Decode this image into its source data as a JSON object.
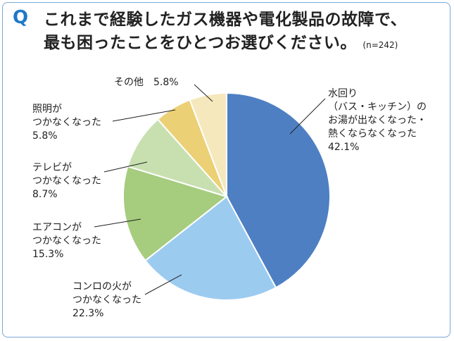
{
  "header": {
    "q_mark": "Q",
    "title_line1": "これまで経験したガス機器や電化製品の故障で、",
    "title_line2": "最も困ったことをひとつお選びください。",
    "note": "(n=242)"
  },
  "colors": {
    "accent": "#1f78c8",
    "frame": "#7aa8d6"
  },
  "chart_data": {
    "type": "pie",
    "start": "12 o'clock",
    "direction": "clockwise",
    "slices": [
      {
        "label_lines": [
          "水回り",
          "（バス・キッチン）の",
          "お湯が出なくなった・",
          "熱くならなくなった"
        ],
        "value": 42.1,
        "value_text": "42.1%",
        "color": "#4e7fc2"
      },
      {
        "label_lines": [
          "コンロの火が",
          "つかなくなった"
        ],
        "value": 22.3,
        "value_text": "22.3%",
        "color": "#9ccbf0"
      },
      {
        "label_lines": [
          "エアコンが",
          "つかなくなった"
        ],
        "value": 15.3,
        "value_text": "15.3%",
        "color": "#a6cc7e"
      },
      {
        "label_lines": [
          "テレビが",
          "つかなくなった"
        ],
        "value": 8.7,
        "value_text": "8.7%",
        "color": "#c8e0b0"
      },
      {
        "label_lines": [
          "照明が",
          "つかなくなった"
        ],
        "value": 5.8,
        "value_text": "5.8%",
        "color": "#ecd075"
      },
      {
        "label_lines": [
          "その他"
        ],
        "value": 5.8,
        "value_text": "5.8%",
        "color": "#f5e8bd"
      }
    ]
  }
}
